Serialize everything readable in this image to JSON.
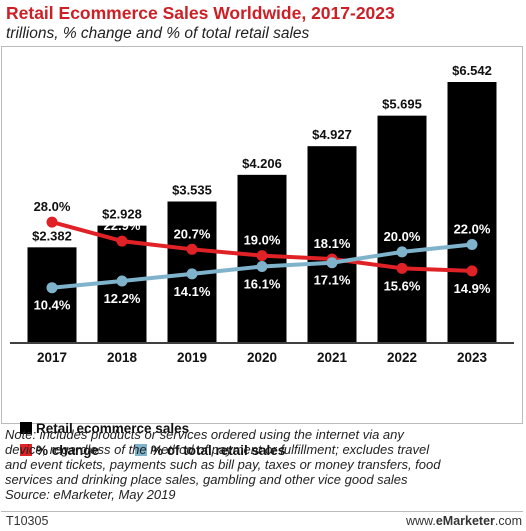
{
  "header": {
    "title": "Retail Ecommerce Sales Worldwide, 2017-2023",
    "subtitle": "trillions, % change and % of total retail sales"
  },
  "legend": {
    "sales": "Retail ecommerce sales",
    "change": "% change",
    "share": "% of total retail sales"
  },
  "note": {
    "lines": [
      "Note: includes products or services ordered using the internet via any",
      "device, regardless of the method of payment or fulfillment; excludes travel",
      "and event tickets, payments such as bill pay, taxes or money transfers, food",
      "services and drinking place sales, gambling and other vice good sales",
      "Source: eMarketer, May 2019"
    ]
  },
  "footer": {
    "id": "T10305",
    "brand_prefix": "www.",
    "brand_bold": "eMarketer",
    "brand_suffix": ".com"
  },
  "colors": {
    "bars": "#000000",
    "change_line": "#e02126",
    "share_line": "#7fb3cc"
  },
  "chart_data": {
    "type": "bar",
    "categories": [
      "2017",
      "2018",
      "2019",
      "2020",
      "2021",
      "2022",
      "2023"
    ],
    "series": [
      {
        "name": "Retail ecommerce sales",
        "type": "bar",
        "values": [
          2.382,
          2.928,
          3.535,
          4.206,
          4.927,
          5.695,
          6.542
        ],
        "labels": [
          "$2.382",
          "$2.928",
          "$3.535",
          "$4.206",
          "$4.927",
          "$5.695",
          "$6.542"
        ]
      },
      {
        "name": "% change",
        "type": "line",
        "values": [
          28.0,
          22.9,
          20.7,
          19.0,
          18.1,
          15.6,
          14.9
        ],
        "labels": [
          "28.0%",
          "22.9%",
          "20.7%",
          "19.0%",
          "18.1%",
          "15.6%",
          "14.9%"
        ]
      },
      {
        "name": "% of total retail sales",
        "type": "line",
        "values": [
          10.4,
          12.2,
          14.1,
          16.1,
          17.1,
          20.0,
          22.0
        ],
        "labels": [
          "10.4%",
          "12.2%",
          "14.1%",
          "16.1%",
          "17.1%",
          "20.0%",
          "22.0%"
        ]
      }
    ],
    "ylim": [
      0,
      6.542
    ],
    "grid": false,
    "legend_position": "bottom-left"
  }
}
